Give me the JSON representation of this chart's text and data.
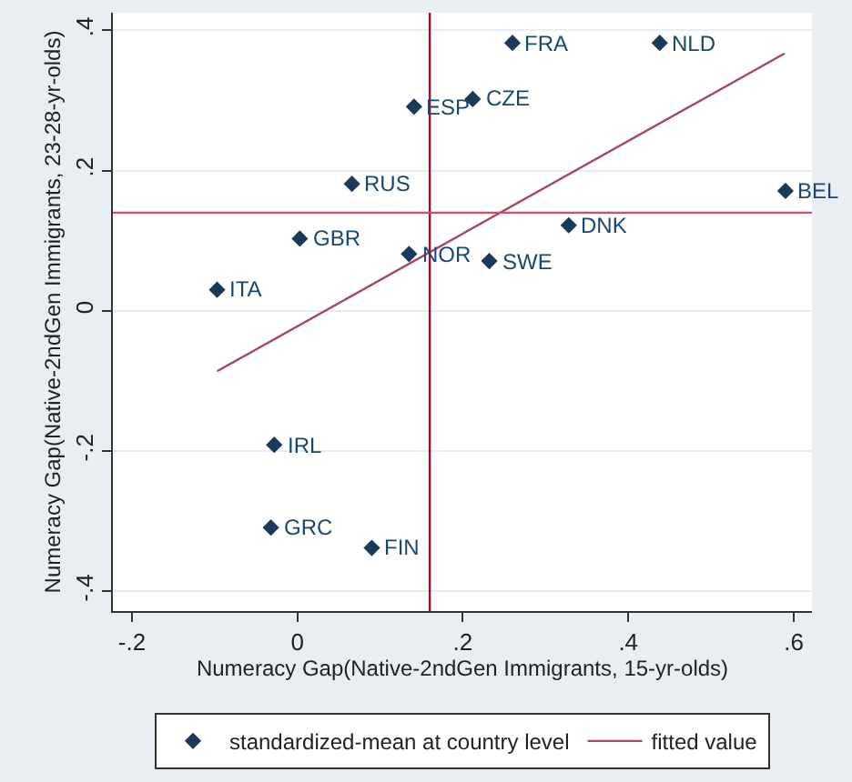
{
  "chart_data": {
    "type": "scatter",
    "xlabel": "Numeracy Gap(Native-2ndGen Immigrants, 15-yr-olds)",
    "ylabel": "Numeracy Gap(Native-2ndGen Immigrants, 23-28-yr-olds)",
    "xlim": [
      -0.223,
      0.622
    ],
    "ylim": [
      -0.428,
      0.425
    ],
    "xticks": [
      {
        "value": -0.2,
        "label": "-.2"
      },
      0,
      {
        "value": 0.2,
        "label": ".2"
      },
      {
        "value": 0.4,
        "label": ".4"
      },
      {
        "value": 0.6,
        "label": ".6"
      }
    ],
    "yticks": [
      {
        "value": -0.4,
        "label": "-.4"
      },
      {
        "value": -0.2,
        "label": "-.2"
      },
      0,
      {
        "value": 0.2,
        "label": ".2"
      },
      {
        "value": 0.4,
        "label": ".4"
      }
    ],
    "grid": "y",
    "legend": "bottom",
    "marker": "diamond",
    "series": [
      {
        "name": "standardized-mean at country level",
        "color": "#1a3a5c",
        "x": [
          -0.097,
          0.003,
          0.066,
          0.135,
          0.141,
          0.212,
          0.26,
          0.438,
          0.59,
          0.328,
          0.232,
          -0.028,
          -0.032,
          0.09
        ],
        "values": [
          0.03,
          0.103,
          0.181,
          0.081,
          0.291,
          0.302,
          0.382,
          0.382,
          0.171,
          0.122,
          0.071,
          -0.191,
          -0.309,
          -0.338
        ]
      },
      {
        "name": "fitted value",
        "type": "line",
        "color": "#a8485a",
        "marker": "none",
        "x": [
          -0.097,
          0.589
        ],
        "values": [
          -0.086,
          0.367
        ]
      }
    ],
    "ref_lines": [
      {
        "axis": "x",
        "value": 0.16,
        "label": null,
        "color": "#a0102a"
      },
      {
        "axis": "y",
        "value": 0.14,
        "label": null,
        "color": "#d05068"
      }
    ],
    "annotations": [
      {
        "text": "ITA",
        "x": -0.097,
        "y": 0.03
      },
      {
        "text": "GBR",
        "x": 0.003,
        "y": 0.103
      },
      {
        "text": "RUS",
        "x": 0.066,
        "y": 0.181
      },
      {
        "text": "NOR",
        "x": 0.135,
        "y": 0.081
      },
      {
        "text": "ESP",
        "x": 0.141,
        "y": 0.291
      },
      {
        "text": "CZE",
        "x": 0.212,
        "y": 0.302
      },
      {
        "text": "FRA",
        "x": 0.26,
        "y": 0.382
      },
      {
        "text": "NLD",
        "x": 0.438,
        "y": 0.382
      },
      {
        "text": "BEL",
        "x": 0.59,
        "y": 0.171
      },
      {
        "text": "DNK",
        "x": 0.328,
        "y": 0.122
      },
      {
        "text": "SWE",
        "x": 0.232,
        "y": 0.071
      },
      {
        "text": "IRL",
        "x": -0.028,
        "y": -0.191
      },
      {
        "text": "GRC",
        "x": -0.032,
        "y": -0.309
      },
      {
        "text": "FIN",
        "x": 0.09,
        "y": -0.338
      }
    ]
  }
}
